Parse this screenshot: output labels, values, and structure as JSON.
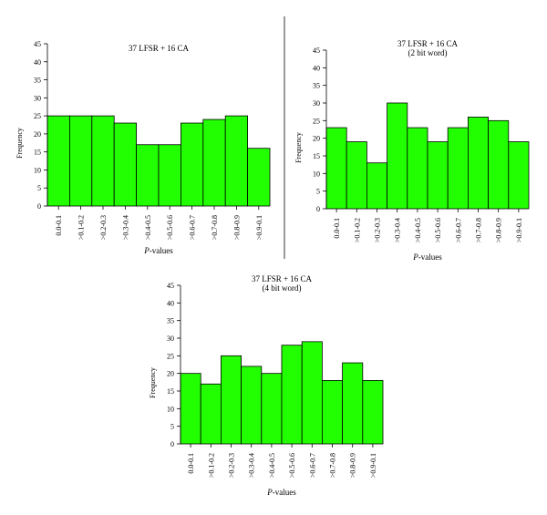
{
  "chart_data": [
    {
      "type": "bar",
      "title_lines": [
        "37 LFSR + 16 CA"
      ],
      "categories": [
        "0.0-0.1",
        ">0.1-0.2",
        ">0.2-0.3",
        ">0.3-0.4",
        ">0.4-0.5",
        ">0.5-0.6",
        ">0.6-0.7",
        ">0.7-0.8",
        ">0.8-0.9",
        ">0.9-0.1"
      ],
      "values": [
        25,
        25,
        25,
        23,
        17,
        17,
        23,
        24,
        25,
        16
      ],
      "yticks": [
        0,
        5,
        10,
        15,
        20,
        25,
        30,
        35,
        40,
        45
      ],
      "ylim": [
        0,
        45
      ],
      "ylabel": "Frequency",
      "xlabel_italic": "P",
      "xlabel_rest": "-values",
      "grid": false,
      "bar_color": "#22ff00"
    },
    {
      "type": "bar",
      "title_lines": [
        "37 LFSR + 16 CA",
        "(2 bit word)"
      ],
      "categories": [
        "0.0-0.1",
        ">0.1-0.2",
        ">0.2-0.3",
        ">0.3-0.4",
        ">0.4-0.5",
        ">0.5-0.6",
        ">0.6-0.7",
        ">0.7-0.8",
        ">0.8-0.9",
        ">0.9-0.1"
      ],
      "values": [
        23,
        19,
        13,
        30,
        23,
        19,
        23,
        26,
        25,
        19
      ],
      "yticks": [
        0,
        5,
        10,
        15,
        20,
        25,
        30,
        35,
        40,
        45
      ],
      "ylim": [
        0,
        45
      ],
      "ylabel": "Frequency",
      "xlabel_italic": "P",
      "xlabel_rest": "-values",
      "grid": false,
      "bar_color": "#22ff00"
    },
    {
      "type": "bar",
      "title_lines": [
        "37 LFSR + 16 CA",
        "(4 bit word)"
      ],
      "categories": [
        "0.0-0.1",
        ">0.1-0.2",
        ">0.2-0.3",
        ">0.3-0.4",
        ">0.4-0.5",
        ">0.5-0.6",
        ">0.6-0.7",
        ">0.7-0.8",
        ">0.8-0.9",
        ">0.9-0.1"
      ],
      "values": [
        20,
        17,
        25,
        22,
        20,
        28,
        29,
        18,
        23,
        18
      ],
      "yticks": [
        0,
        5,
        10,
        15,
        20,
        25,
        30,
        35,
        40,
        45
      ],
      "ylim": [
        0,
        45
      ],
      "ylabel": "Frequency",
      "xlabel_italic": "P",
      "xlabel_rest": "-values",
      "grid": false,
      "bar_color": "#22ff00"
    }
  ]
}
